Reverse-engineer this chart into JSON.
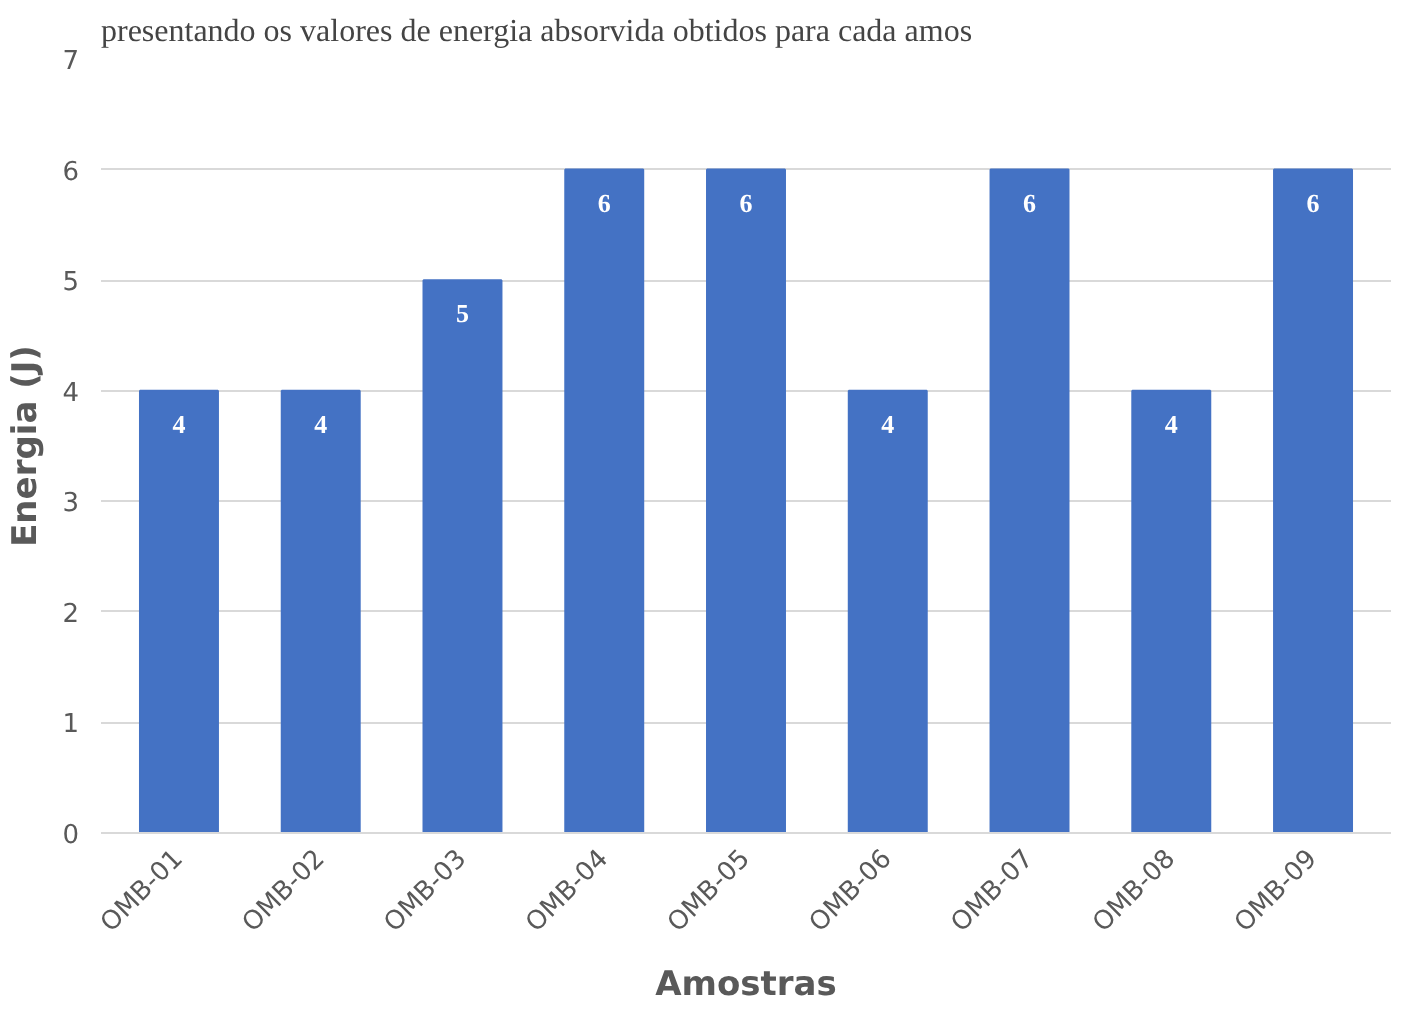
{
  "chart_data": {
    "type": "bar",
    "annotations": [
      "presentando os valores de energia absorvida obtidos para cada amos"
    ],
    "xlabel": "Amostras",
    "ylabel": "Energia (J)",
    "categories": [
      "OMB-01",
      "OMB-02",
      "OMB-03",
      "OMB-04",
      "OMB-05",
      "OMB-06",
      "OMB-07",
      "OMB-08",
      "OMB-09"
    ],
    "values": [
      4,
      4,
      5,
      6,
      6,
      4,
      6,
      4,
      6
    ],
    "color": "#4472c4",
    "ylim": [
      0,
      7
    ],
    "yticks": [
      0,
      1,
      2,
      3,
      4,
      5,
      6,
      7
    ],
    "grid": "y",
    "data_labels": true
  }
}
